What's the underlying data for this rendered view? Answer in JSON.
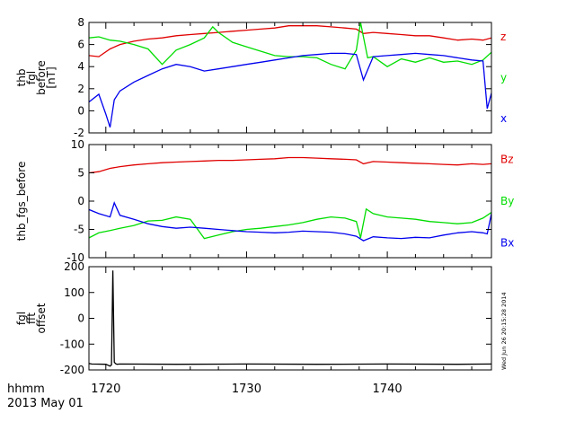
{
  "footer": {
    "time_label": "hhmm",
    "date_label": "2013 May 01",
    "stamp": "Wed Jun 26 20:15:28 2014"
  },
  "chart_data": [
    {
      "type": "line",
      "ylabel_lines": [
        "thb",
        "fgl",
        "before",
        "[nT]"
      ],
      "xlim": [
        1718.8,
        1747.4
      ],
      "ylim": [
        -2,
        8
      ],
      "yticks": [
        -2,
        0,
        2,
        4,
        6,
        8
      ],
      "grid": false,
      "legend_position": "right",
      "series": [
        {
          "name": "z",
          "color": "#e00000",
          "x": [
            1718.8,
            1719.5,
            1720.3,
            1721,
            1722,
            1723,
            1724,
            1725,
            1726,
            1727,
            1728,
            1729,
            1730,
            1731,
            1732,
            1733,
            1734,
            1735,
            1736,
            1737,
            1737.8,
            1738.3,
            1739,
            1740,
            1741,
            1742,
            1743,
            1744,
            1745,
            1746,
            1746.8,
            1747.4
          ],
          "y": [
            5.0,
            4.9,
            5.6,
            6.0,
            6.3,
            6.5,
            6.6,
            6.8,
            6.9,
            7.0,
            7.1,
            7.2,
            7.3,
            7.4,
            7.5,
            7.7,
            7.7,
            7.7,
            7.6,
            7.5,
            7.4,
            7.0,
            7.1,
            7.0,
            6.9,
            6.8,
            6.8,
            6.6,
            6.4,
            6.5,
            6.4,
            6.6
          ]
        },
        {
          "name": "y",
          "color": "#00dd00",
          "x": [
            1718.8,
            1719.5,
            1720.3,
            1721,
            1722,
            1723,
            1724,
            1725,
            1726,
            1727,
            1727.6,
            1728,
            1729,
            1730,
            1731,
            1732,
            1733,
            1734,
            1735,
            1736,
            1737,
            1737.8,
            1738.1,
            1738.6,
            1739,
            1740,
            1741,
            1742,
            1743,
            1744,
            1745,
            1746,
            1746.8,
            1747.4
          ],
          "y": [
            6.6,
            6.7,
            6.4,
            6.3,
            6.0,
            5.6,
            4.2,
            5.5,
            6.0,
            6.6,
            7.6,
            7.1,
            6.2,
            5.8,
            5.4,
            5.0,
            4.9,
            4.9,
            4.8,
            4.2,
            3.8,
            5.5,
            8.0,
            4.8,
            4.9,
            4.0,
            4.7,
            4.4,
            4.8,
            4.4,
            4.5,
            4.2,
            4.6,
            5.3
          ]
        },
        {
          "name": "x",
          "color": "#0000ee",
          "x": [
            1718.8,
            1719.5,
            1720,
            1720.3,
            1720.6,
            1721,
            1722,
            1723,
            1724,
            1725,
            1726,
            1727,
            1728,
            1729,
            1730,
            1731,
            1732,
            1733,
            1734,
            1735,
            1736,
            1737,
            1737.8,
            1738.3,
            1739,
            1740,
            1741,
            1742,
            1743,
            1744,
            1745,
            1746,
            1746.8,
            1747.1,
            1747.4
          ],
          "y": [
            0.8,
            1.5,
            -0.3,
            -1.5,
            1.0,
            1.8,
            2.6,
            3.2,
            3.8,
            4.2,
            4.0,
            3.6,
            3.8,
            4.0,
            4.2,
            4.4,
            4.6,
            4.8,
            5.0,
            5.1,
            5.2,
            5.2,
            5.1,
            2.8,
            4.9,
            5.0,
            5.1,
            5.2,
            5.1,
            5.0,
            4.8,
            4.6,
            4.5,
            0.2,
            1.6
          ]
        }
      ]
    },
    {
      "type": "line",
      "ylabel": "thb_fgs_before",
      "xlim": [
        1718.8,
        1747.4
      ],
      "ylim": [
        -10,
        10
      ],
      "yticks": [
        -10,
        -5,
        0,
        5,
        10
      ],
      "grid": false,
      "legend_position": "right",
      "series": [
        {
          "name": "Bz",
          "color": "#e00000",
          "x": [
            1718.8,
            1719.5,
            1720.3,
            1721,
            1722,
            1723,
            1724,
            1725,
            1726,
            1727,
            1728,
            1729,
            1730,
            1731,
            1732,
            1733,
            1734,
            1735,
            1736,
            1737,
            1737.8,
            1738.3,
            1739,
            1740,
            1741,
            1742,
            1743,
            1744,
            1745,
            1746,
            1746.8,
            1747.4
          ],
          "y": [
            5.0,
            5.2,
            5.8,
            6.1,
            6.4,
            6.6,
            6.8,
            6.9,
            7.0,
            7.1,
            7.2,
            7.2,
            7.3,
            7.4,
            7.5,
            7.7,
            7.7,
            7.6,
            7.5,
            7.4,
            7.3,
            6.6,
            7.0,
            6.9,
            6.8,
            6.7,
            6.6,
            6.5,
            6.4,
            6.6,
            6.5,
            6.6
          ]
        },
        {
          "name": "By",
          "color": "#00dd00",
          "x": [
            1718.8,
            1719.5,
            1720.3,
            1721,
            1722,
            1723,
            1724,
            1725,
            1726,
            1727,
            1728,
            1729,
            1730,
            1731,
            1732,
            1733,
            1734,
            1735,
            1736,
            1737,
            1737.8,
            1738.1,
            1738.5,
            1739,
            1740,
            1741,
            1742,
            1743,
            1744,
            1745,
            1746,
            1746.8,
            1747.4
          ],
          "y": [
            -6.5,
            -5.6,
            -5.2,
            -4.8,
            -4.3,
            -3.5,
            -3.4,
            -2.8,
            -3.2,
            -6.6,
            -6.0,
            -5.4,
            -5.0,
            -4.8,
            -4.5,
            -4.2,
            -3.8,
            -3.2,
            -2.8,
            -3.0,
            -3.6,
            -6.5,
            -1.4,
            -2.2,
            -2.8,
            -3.0,
            -3.2,
            -3.6,
            -3.8,
            -4.0,
            -3.8,
            -3.0,
            -2.0
          ]
        },
        {
          "name": "Bx",
          "color": "#0000ee",
          "x": [
            1718.8,
            1719.5,
            1720.3,
            1720.6,
            1721,
            1722,
            1723,
            1724,
            1725,
            1726,
            1727,
            1728,
            1729,
            1730,
            1731,
            1732,
            1733,
            1734,
            1735,
            1736,
            1737,
            1737.8,
            1738.3,
            1739,
            1740,
            1741,
            1742,
            1743,
            1744,
            1745,
            1746,
            1746.8,
            1747.1,
            1747.4
          ],
          "y": [
            -1.5,
            -2.2,
            -2.8,
            -0.3,
            -2.5,
            -3.2,
            -4.0,
            -4.5,
            -4.8,
            -4.6,
            -4.8,
            -5.0,
            -5.2,
            -5.4,
            -5.5,
            -5.6,
            -5.5,
            -5.3,
            -5.4,
            -5.5,
            -5.8,
            -6.2,
            -7.0,
            -6.3,
            -6.5,
            -6.6,
            -6.4,
            -6.5,
            -6.0,
            -5.6,
            -5.4,
            -5.6,
            -5.8,
            -2.2
          ]
        }
      ]
    },
    {
      "type": "line",
      "ylabel_lines": [
        "fgl",
        "fft",
        "offset"
      ],
      "xlim": [
        1718.8,
        1747.4
      ],
      "ylim": [
        -200,
        200
      ],
      "yticks": [
        -200,
        -100,
        0,
        100,
        200
      ],
      "xticks": [
        1720,
        1730,
        1740
      ],
      "grid": false,
      "series": [
        {
          "color": "#000000",
          "x": [
            1718.8,
            1719,
            1720,
            1720.3,
            1720.4,
            1720.5,
            1720.6,
            1720.7,
            1720.8,
            1721,
            1725,
            1730,
            1735,
            1740,
            1745,
            1747.4
          ],
          "y": [
            -175,
            -177,
            -178,
            -185,
            -180,
            185,
            -170,
            -176,
            -178,
            -177,
            -178,
            -177,
            -178,
            -177,
            -178,
            -177
          ]
        }
      ]
    }
  ]
}
